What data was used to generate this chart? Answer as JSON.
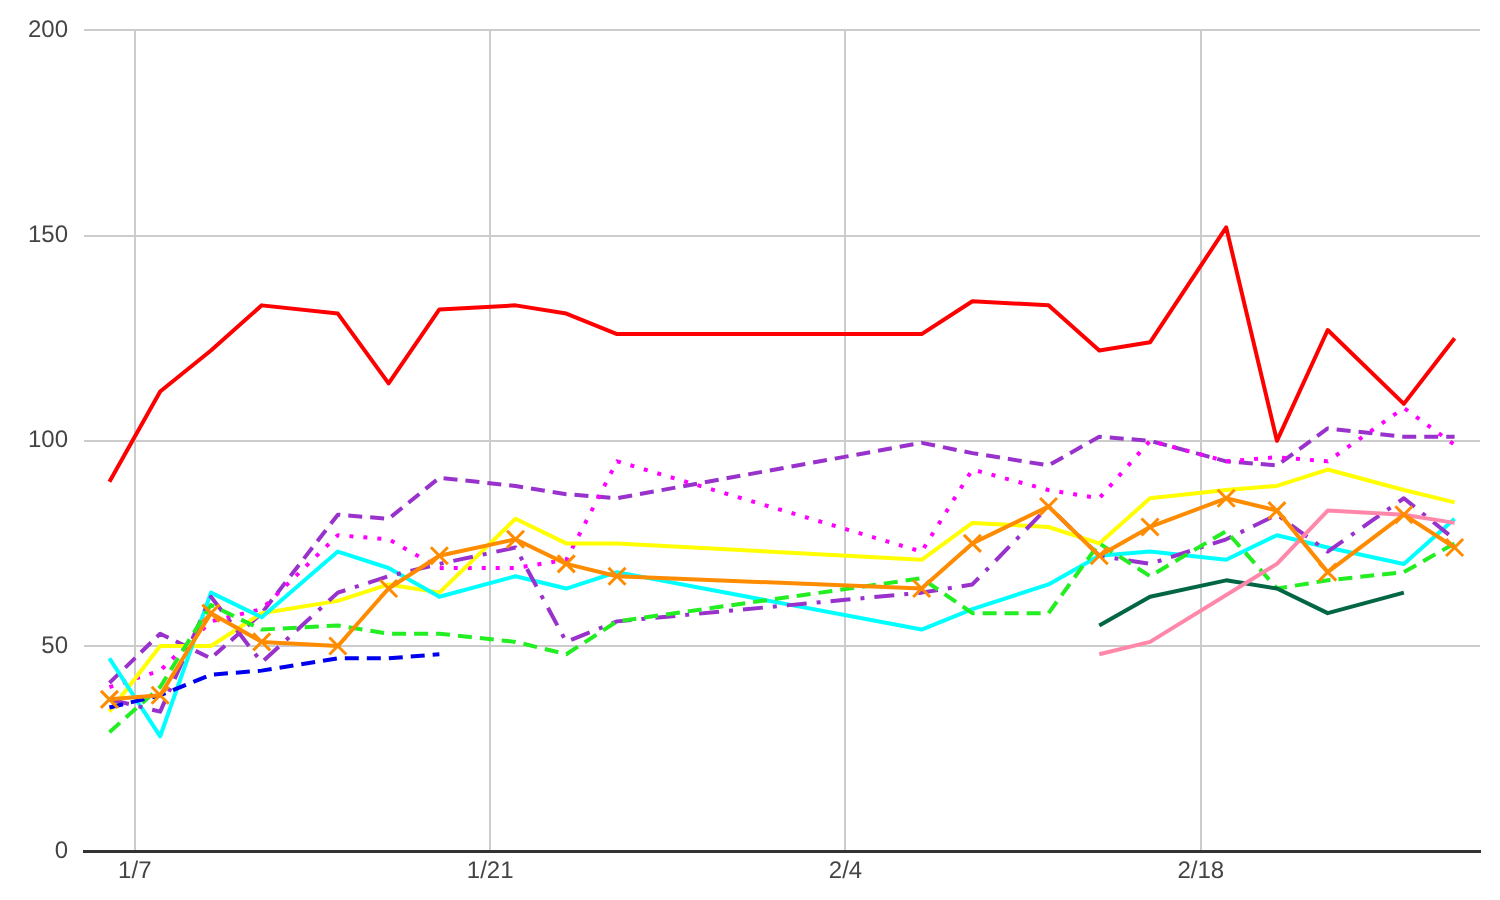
{
  "chart_data": {
    "type": "line",
    "x": [
      "--01-06",
      "--01-08",
      "--01-10",
      "--01-12",
      "--01-15",
      "--01-17",
      "--01-19",
      "--01-22",
      "--01-24",
      "--01-26",
      "--02-07",
      "--02-09",
      "--02-12",
      "--02-14",
      "--02-16",
      "--02-19",
      "--02-21",
      "--02-23",
      "--02-26",
      "--02-28"
    ],
    "series": [
      {
        "color": "#ff0000",
        "line_style": "solid",
        "values": [
          90,
          112,
          122,
          133,
          131,
          114,
          132,
          133,
          131,
          126,
          126,
          134,
          133,
          122,
          124,
          152,
          100,
          127,
          109,
          125
        ]
      },
      {
        "color": "#9932cc",
        "line_style": "dashed",
        "values": [
          41,
          53,
          47,
          58,
          82,
          81,
          91,
          89,
          87,
          86,
          99.5,
          97,
          94,
          101,
          100,
          95,
          94,
          103,
          101,
          101
        ]
      },
      {
        "color": "#ff00ff",
        "line_style": "dotted",
        "values": [
          40,
          44,
          56,
          59,
          77,
          76,
          69,
          69,
          71,
          95,
          73,
          93,
          88,
          86,
          100,
          95,
          96,
          95,
          108,
          99
        ]
      },
      {
        "color": "#ffff00",
        "line_style": "solid",
        "values": [
          34,
          50,
          50,
          58,
          61,
          65,
          63,
          81,
          75,
          75,
          71,
          80,
          79,
          75,
          86,
          88,
          89,
          93,
          88,
          85
        ]
      },
      {
        "color": "#ff8c00",
        "line_style": "solid",
        "marker": "cross",
        "values": [
          37,
          38,
          58,
          51,
          50,
          64,
          72,
          76,
          70,
          67,
          64,
          75,
          84,
          72,
          79,
          86,
          83,
          68,
          82,
          74
        ]
      },
      {
        "color": "#00ffff",
        "line_style": "solid",
        "values": [
          47,
          28,
          63,
          57,
          73,
          69,
          62,
          67,
          64,
          68,
          54,
          59,
          65,
          72,
          73,
          71,
          77,
          74,
          70,
          81
        ]
      },
      {
        "color": "#9932cc",
        "line_style": "dashdot",
        "values": [
          37,
          34,
          62,
          46,
          63,
          67,
          70,
          74,
          51,
          56,
          63,
          65,
          84,
          72,
          70,
          76,
          82,
          73,
          86,
          76
        ]
      },
      {
        "color": "#22ee22",
        "line_style": "dashed",
        "values": [
          29,
          40,
          60,
          54,
          55,
          53,
          53,
          51,
          48,
          56,
          66.5,
          58,
          58,
          75,
          67,
          78,
          64,
          66,
          68,
          75
        ]
      },
      {
        "color": "#0000ee",
        "line_style": "dashed",
        "x": [
          "--01-06",
          "--01-08",
          "--01-10",
          "--01-12",
          "--01-15",
          "--01-17",
          "--01-19"
        ],
        "values": [
          35,
          38,
          43,
          44,
          47,
          47,
          48
        ]
      },
      {
        "color": "#006644",
        "line_style": "solid",
        "x": [
          "--02-14",
          "--02-16",
          "--02-19",
          "--02-21",
          "--02-23",
          "--02-26"
        ],
        "values": [
          55,
          62,
          66,
          64,
          58,
          63
        ]
      },
      {
        "color": "#ff88aa",
        "line_style": "solid",
        "x": [
          "--02-14",
          "--02-16",
          "--02-21",
          "--02-23",
          "--02-26",
          "--02-28"
        ],
        "values": [
          48,
          51,
          70,
          83,
          82,
          80
        ]
      }
    ],
    "xlim": [
      "--01-05",
      "--03-01"
    ],
    "xticks": [
      {
        "value": "--01-07",
        "label": "1/7"
      },
      {
        "value": "--01-21",
        "label": "1/21"
      },
      {
        "value": "--02-04",
        "label": "2/4"
      },
      {
        "value": "--02-18",
        "label": "2/18"
      }
    ],
    "ylim": [
      0,
      200
    ],
    "yticks": [
      0,
      50,
      100,
      150,
      200
    ],
    "grid": true,
    "legend": false
  }
}
